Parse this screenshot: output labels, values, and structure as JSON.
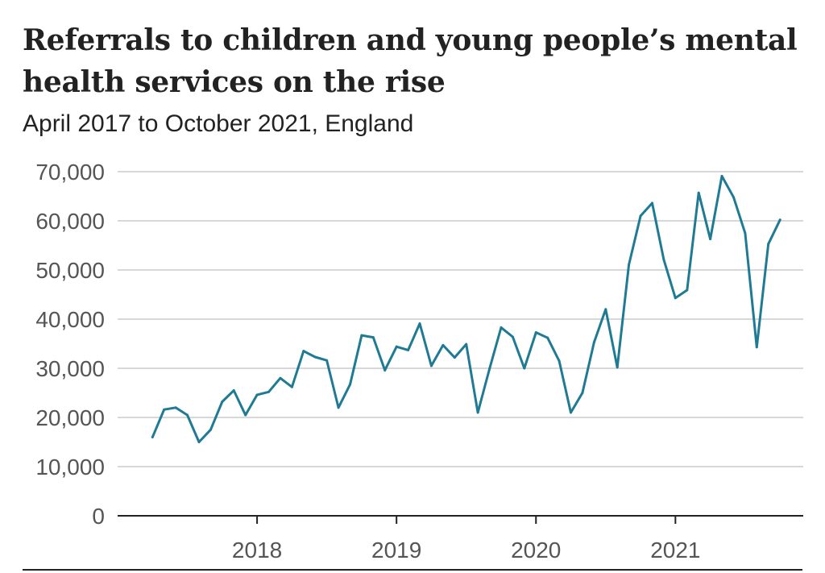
{
  "chart_data": {
    "type": "line",
    "title": "Referrals to children and young people’s mental health services on the rise",
    "subtitle": "April 2017 to October 2021, England",
    "xlabel": "",
    "ylabel": "",
    "ylim": [
      0,
      70000
    ],
    "xlim": [
      "2017-01",
      "2021-12"
    ],
    "y_ticks": [
      0,
      10000,
      20000,
      30000,
      40000,
      50000,
      60000,
      70000
    ],
    "y_tick_labels": [
      "0",
      "10,000",
      "20,000",
      "30,000",
      "40,000",
      "50,000",
      "60,000",
      "70,000"
    ],
    "x_ticks": [
      "2018-01",
      "2019-01",
      "2020-01",
      "2021-01"
    ],
    "x_tick_labels": [
      "2018",
      "2019",
      "2020",
      "2021"
    ],
    "grid": true,
    "line_color": "#1f7a94",
    "series": [
      {
        "x": [
          "2017-04",
          "2017-05",
          "2017-06",
          "2017-07",
          "2017-08",
          "2017-09",
          "2017-10",
          "2017-11",
          "2017-12",
          "2018-01",
          "2018-02",
          "2018-03",
          "2018-04",
          "2018-05",
          "2018-06",
          "2018-07",
          "2018-08",
          "2018-09",
          "2018-10",
          "2018-11",
          "2018-12",
          "2019-01",
          "2019-02",
          "2019-03",
          "2019-04",
          "2019-05",
          "2019-06",
          "2019-07",
          "2019-08",
          "2019-09",
          "2019-10",
          "2019-11",
          "2019-12",
          "2020-01",
          "2020-02",
          "2020-03",
          "2020-04",
          "2020-05",
          "2020-06",
          "2020-07",
          "2020-08",
          "2020-09",
          "2020-10",
          "2020-11",
          "2020-12",
          "2021-01",
          "2021-02",
          "2021-03",
          "2021-04",
          "2021-05",
          "2021-06",
          "2021-07",
          "2021-08",
          "2021-09",
          "2021-10"
        ],
        "values": [
          16000,
          21600,
          22000,
          20500,
          15000,
          17500,
          23200,
          25500,
          20500,
          24600,
          25200,
          28000,
          26200,
          33500,
          32300,
          31600,
          22000,
          26700,
          36700,
          36300,
          29600,
          34400,
          33700,
          39100,
          30500,
          34700,
          32200,
          34900,
          21000,
          29900,
          38300,
          36400,
          30000,
          37300,
          36200,
          31500,
          21000,
          25000,
          35300,
          42000,
          30200,
          51100,
          61000,
          63600,
          52100,
          44300,
          45900,
          65700,
          56300,
          69100,
          64800,
          57500,
          34300,
          55300,
          60200
        ]
      }
    ]
  }
}
